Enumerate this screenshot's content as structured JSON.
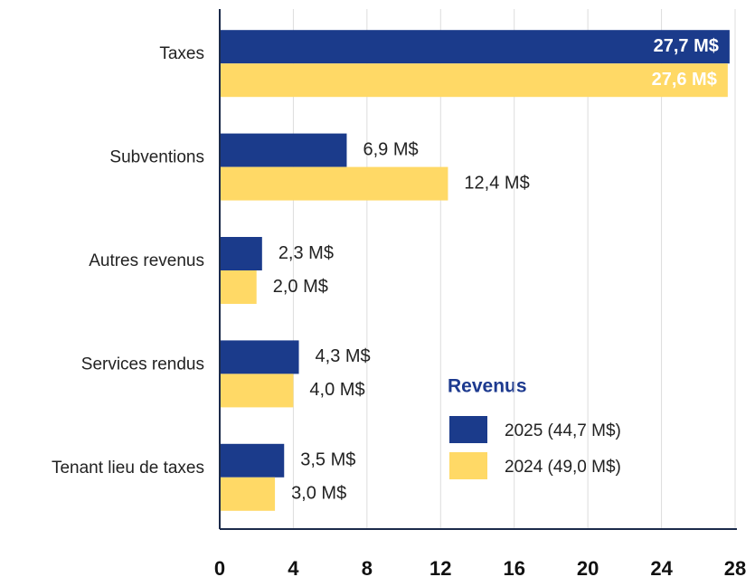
{
  "chart_data": {
    "type": "bar",
    "orientation": "horizontal",
    "categories": [
      "Taxes",
      "Subventions",
      "Autres  revenus",
      "Services rendus",
      "Tenant lieu de taxes"
    ],
    "series": [
      {
        "name": "2025 (44,7 M$)",
        "color": "#1b3b8b",
        "values": [
          27.7,
          6.9,
          2.3,
          4.3,
          3.5
        ],
        "value_labels": [
          "27,7 M$",
          "6,9 M$",
          "2,3 M$",
          "4,3 M$",
          "3,5 M$"
        ]
      },
      {
        "name": "2024 (49,0 M$)",
        "color": "#ffd966",
        "values": [
          27.6,
          12.4,
          2.0,
          4.0,
          3.0
        ],
        "value_labels": [
          "27,6 M$",
          "12,4 M$",
          "2,0 M$",
          "4,0 M$",
          "3,0 M$"
        ]
      }
    ],
    "legend_title": "Revenus",
    "xlim": [
      0,
      28
    ],
    "xticks": [
      0,
      4,
      8,
      12,
      16,
      20,
      24,
      28
    ],
    "grid": true
  }
}
